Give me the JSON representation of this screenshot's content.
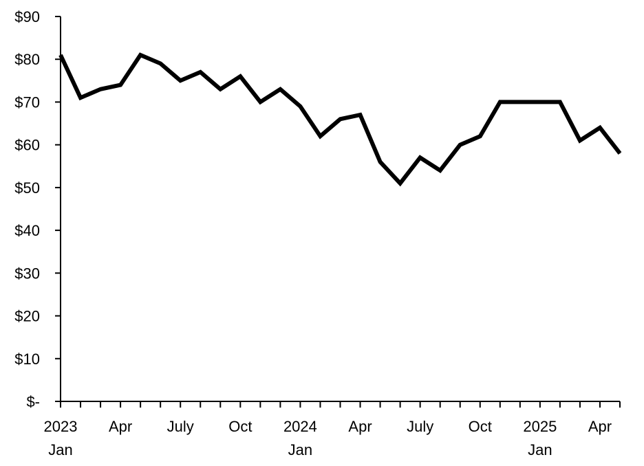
{
  "chart_data": {
    "type": "line",
    "title": "",
    "xlabel": "",
    "ylabel": "",
    "ylim": [
      0,
      90
    ],
    "yticks": [
      {
        "value": 0,
        "label": "$-"
      },
      {
        "value": 10,
        "label": "$10"
      },
      {
        "value": 20,
        "label": "$20"
      },
      {
        "value": 30,
        "label": "$30"
      },
      {
        "value": 40,
        "label": "$40"
      },
      {
        "value": 50,
        "label": "$50"
      },
      {
        "value": 60,
        "label": "$60"
      },
      {
        "value": 70,
        "label": "$70"
      },
      {
        "value": 80,
        "label": "$80"
      },
      {
        "value": 90,
        "label": "$90"
      }
    ],
    "x": [
      "2023-01",
      "2023-02",
      "2023-03",
      "2023-04",
      "2023-05",
      "2023-06",
      "2023-07",
      "2023-08",
      "2023-09",
      "2023-10",
      "2023-11",
      "2023-12",
      "2024-01",
      "2024-02",
      "2024-03",
      "2024-04",
      "2024-05",
      "2024-06",
      "2024-07",
      "2024-08",
      "2024-09",
      "2024-10",
      "2024-11",
      "2024-12",
      "2025-01",
      "2025-02",
      "2025-03",
      "2025-04",
      "2025-05"
    ],
    "xtick_labels": [
      {
        "x": "2023-01",
        "lines": [
          "2023",
          "Jan"
        ]
      },
      {
        "x": "2023-04",
        "lines": [
          "Apr"
        ]
      },
      {
        "x": "2023-07",
        "lines": [
          "July"
        ]
      },
      {
        "x": "2023-10",
        "lines": [
          "Oct"
        ]
      },
      {
        "x": "2024-01",
        "lines": [
          "2024",
          "Jan"
        ]
      },
      {
        "x": "2024-04",
        "lines": [
          "Apr"
        ]
      },
      {
        "x": "2024-07",
        "lines": [
          "July"
        ]
      },
      {
        "x": "2024-10",
        "lines": [
          "Oct"
        ]
      },
      {
        "x": "2025-01",
        "lines": [
          "2025",
          "Jan"
        ]
      },
      {
        "x": "2025-04",
        "lines": [
          "Apr"
        ]
      }
    ],
    "series": [
      {
        "values": [
          81,
          71,
          73,
          74,
          81,
          79,
          75,
          77,
          73,
          76,
          70,
          73,
          69,
          62,
          66,
          67,
          56,
          51,
          57,
          54,
          60,
          62,
          70,
          70,
          70,
          70,
          61,
          64,
          58
        ],
        "color": "#000000"
      }
    ],
    "grid": false,
    "legend": "none"
  }
}
